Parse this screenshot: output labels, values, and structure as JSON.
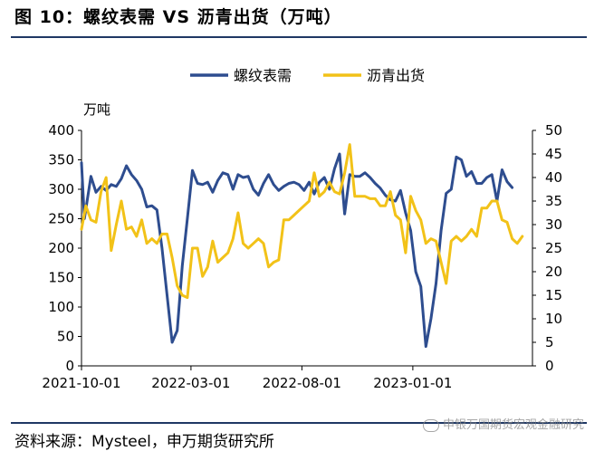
{
  "header": {
    "title": "图 10：螺纹表需 VS 沥青出货（万吨）"
  },
  "footer": {
    "source": "资料来源：Mysteel，申万期货研究所",
    "watermark": "申银万国期货宏观金融研究"
  },
  "colors": {
    "rebar": "#2e4d8f",
    "asphalt": "#f2c218",
    "rule": "#1f3864"
  },
  "chart_data": {
    "type": "line",
    "unit_label": "万吨",
    "legend_position": "top",
    "x_tick_labels": [
      "2021-10-01",
      "2022-03-01",
      "2022-08-01",
      "2023-01-01"
    ],
    "x_tick_dates": [
      "2021-10-01",
      "2022-03-01",
      "2022-08-01",
      "2023-01-01"
    ],
    "x_range": [
      "2021-10-01",
      "2023-06-15"
    ],
    "y_left": {
      "min": 0,
      "max": 400,
      "ticks": [
        0,
        50,
        100,
        150,
        200,
        250,
        300,
        350,
        400
      ]
    },
    "y_right": {
      "min": 0,
      "max": 50,
      "ticks": [
        0,
        5,
        10,
        15,
        20,
        25,
        30,
        35,
        40,
        45,
        50
      ]
    },
    "series": [
      {
        "name": "螺纹表需",
        "axis": "left",
        "color": "#2e4d8f",
        "points": [
          [
            "2021-10-01",
            345
          ],
          [
            "2021-10-05",
            250
          ],
          [
            "2021-10-14",
            322
          ],
          [
            "2021-10-21",
            295
          ],
          [
            "2021-10-28",
            305
          ],
          [
            "2021-11-04",
            298
          ],
          [
            "2021-11-11",
            308
          ],
          [
            "2021-11-18",
            305
          ],
          [
            "2021-11-25",
            318
          ],
          [
            "2021-12-02",
            340
          ],
          [
            "2021-12-09",
            325
          ],
          [
            "2021-12-16",
            315
          ],
          [
            "2021-12-23",
            300
          ],
          [
            "2021-12-30",
            270
          ],
          [
            "2022-01-06",
            272
          ],
          [
            "2022-01-13",
            265
          ],
          [
            "2022-01-20",
            200
          ],
          [
            "2022-01-27",
            120
          ],
          [
            "2022-02-03",
            40
          ],
          [
            "2022-02-10",
            60
          ],
          [
            "2022-02-17",
            170
          ],
          [
            "2022-02-24",
            250
          ],
          [
            "2022-03-03",
            332
          ],
          [
            "2022-03-10",
            310
          ],
          [
            "2022-03-17",
            308
          ],
          [
            "2022-03-24",
            312
          ],
          [
            "2022-03-31",
            295
          ],
          [
            "2022-04-07",
            315
          ],
          [
            "2022-04-14",
            328
          ],
          [
            "2022-04-21",
            325
          ],
          [
            "2022-04-28",
            300
          ],
          [
            "2022-05-05",
            325
          ],
          [
            "2022-05-12",
            320
          ],
          [
            "2022-05-19",
            322
          ],
          [
            "2022-05-26",
            300
          ],
          [
            "2022-06-02",
            290
          ],
          [
            "2022-06-09",
            310
          ],
          [
            "2022-06-16",
            325
          ],
          [
            "2022-06-23",
            308
          ],
          [
            "2022-06-30",
            298
          ],
          [
            "2022-07-07",
            305
          ],
          [
            "2022-07-14",
            310
          ],
          [
            "2022-07-21",
            312
          ],
          [
            "2022-07-28",
            308
          ],
          [
            "2022-08-04",
            298
          ],
          [
            "2022-08-11",
            312
          ],
          [
            "2022-08-18",
            292
          ],
          [
            "2022-08-25",
            312
          ],
          [
            "2022-09-01",
            320
          ],
          [
            "2022-09-08",
            300
          ],
          [
            "2022-09-15",
            335
          ],
          [
            "2022-09-22",
            360
          ],
          [
            "2022-09-29",
            258
          ],
          [
            "2022-10-06",
            325
          ],
          [
            "2022-10-13",
            322
          ],
          [
            "2022-10-20",
            322
          ],
          [
            "2022-10-27",
            328
          ],
          [
            "2022-11-03",
            320
          ],
          [
            "2022-11-10",
            310
          ],
          [
            "2022-11-17",
            302
          ],
          [
            "2022-11-24",
            290
          ],
          [
            "2022-12-01",
            282
          ],
          [
            "2022-12-08",
            280
          ],
          [
            "2022-12-15",
            298
          ],
          [
            "2022-12-22",
            260
          ],
          [
            "2022-12-29",
            230
          ],
          [
            "2023-01-05",
            160
          ],
          [
            "2023-01-12",
            135
          ],
          [
            "2023-01-19",
            33
          ],
          [
            "2023-01-26",
            80
          ],
          [
            "2023-02-02",
            140
          ],
          [
            "2023-02-09",
            230
          ],
          [
            "2023-02-16",
            293
          ],
          [
            "2023-02-23",
            300
          ],
          [
            "2023-03-02",
            355
          ],
          [
            "2023-03-09",
            350
          ],
          [
            "2023-03-16",
            322
          ],
          [
            "2023-03-23",
            330
          ],
          [
            "2023-03-30",
            310
          ],
          [
            "2023-04-06",
            310
          ],
          [
            "2023-04-13",
            320
          ],
          [
            "2023-04-20",
            325
          ],
          [
            "2023-04-27",
            280
          ],
          [
            "2023-05-04",
            333
          ],
          [
            "2023-05-11",
            313
          ],
          [
            "2023-05-18",
            303
          ]
        ]
      },
      {
        "name": "沥青出货",
        "axis": "right",
        "color": "#f2c218",
        "points": [
          [
            "2021-10-01",
            29
          ],
          [
            "2021-10-07",
            34
          ],
          [
            "2021-10-14",
            31
          ],
          [
            "2021-10-21",
            30.5
          ],
          [
            "2021-10-28",
            37
          ],
          [
            "2021-11-04",
            40
          ],
          [
            "2021-11-11",
            24.5
          ],
          [
            "2021-11-18",
            30
          ],
          [
            "2021-11-25",
            35
          ],
          [
            "2021-12-02",
            29
          ],
          [
            "2021-12-09",
            29.5
          ],
          [
            "2021-12-16",
            27.5
          ],
          [
            "2021-12-23",
            31
          ],
          [
            "2021-12-30",
            26
          ],
          [
            "2022-01-06",
            27
          ],
          [
            "2022-01-13",
            26
          ],
          [
            "2022-01-20",
            28
          ],
          [
            "2022-01-27",
            28
          ],
          [
            "2022-02-03",
            23
          ],
          [
            "2022-02-10",
            17
          ],
          [
            "2022-02-17",
            15
          ],
          [
            "2022-02-24",
            14.5
          ],
          [
            "2022-03-03",
            25
          ],
          [
            "2022-03-10",
            25
          ],
          [
            "2022-03-17",
            19
          ],
          [
            "2022-03-24",
            21
          ],
          [
            "2022-03-31",
            26.5
          ],
          [
            "2022-04-07",
            22
          ],
          [
            "2022-04-14",
            23
          ],
          [
            "2022-04-21",
            24
          ],
          [
            "2022-04-28",
            27
          ],
          [
            "2022-05-05",
            32.5
          ],
          [
            "2022-05-12",
            26
          ],
          [
            "2022-05-19",
            25
          ],
          [
            "2022-05-26",
            26
          ],
          [
            "2022-06-02",
            27
          ],
          [
            "2022-06-09",
            26
          ],
          [
            "2022-06-16",
            21
          ],
          [
            "2022-06-23",
            22
          ],
          [
            "2022-06-30",
            22.5
          ],
          [
            "2022-07-07",
            31
          ],
          [
            "2022-07-14",
            31
          ],
          [
            "2022-07-21",
            32
          ],
          [
            "2022-07-28",
            33
          ],
          [
            "2022-08-04",
            34
          ],
          [
            "2022-08-11",
            35
          ],
          [
            "2022-08-18",
            41
          ],
          [
            "2022-08-25",
            36
          ],
          [
            "2022-09-01",
            37
          ],
          [
            "2022-09-08",
            39
          ],
          [
            "2022-09-15",
            37
          ],
          [
            "2022-09-22",
            36.5
          ],
          [
            "2022-09-29",
            41
          ],
          [
            "2022-10-06",
            47
          ],
          [
            "2022-10-13",
            36
          ],
          [
            "2022-10-20",
            36
          ],
          [
            "2022-10-27",
            36
          ],
          [
            "2022-11-03",
            35.5
          ],
          [
            "2022-11-10",
            35.5
          ],
          [
            "2022-11-17",
            34
          ],
          [
            "2022-11-24",
            34
          ],
          [
            "2022-12-01",
            37
          ],
          [
            "2022-12-08",
            32
          ],
          [
            "2022-12-15",
            31
          ],
          [
            "2022-12-22",
            24
          ],
          [
            "2022-12-29",
            36
          ],
          [
            "2023-01-05",
            33
          ],
          [
            "2023-01-12",
            31
          ],
          [
            "2023-01-19",
            26
          ],
          [
            "2023-01-26",
            27
          ],
          [
            "2023-02-02",
            26.5
          ],
          [
            "2023-02-09",
            22
          ],
          [
            "2023-02-16",
            17.5
          ],
          [
            "2023-02-23",
            26.5
          ],
          [
            "2023-03-02",
            27.5
          ],
          [
            "2023-03-09",
            26.5
          ],
          [
            "2023-03-16",
            27.5
          ],
          [
            "2023-03-23",
            29
          ],
          [
            "2023-03-30",
            27.5
          ],
          [
            "2023-04-06",
            33.5
          ],
          [
            "2023-04-13",
            33.5
          ],
          [
            "2023-04-20",
            35
          ],
          [
            "2023-04-27",
            35
          ],
          [
            "2023-05-04",
            31
          ],
          [
            "2023-05-11",
            30.5
          ],
          [
            "2023-05-18",
            27
          ],
          [
            "2023-05-25",
            26
          ],
          [
            "2023-06-01",
            27.5
          ]
        ]
      }
    ]
  }
}
